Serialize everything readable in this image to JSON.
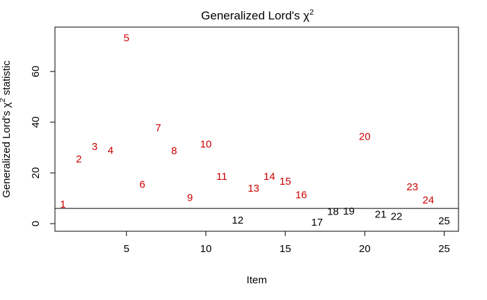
{
  "chart_data": {
    "type": "scatter",
    "title": {
      "main": "Generalized Lord's ",
      "symbol": "χ",
      "sup": "2"
    },
    "xlabel": "Item",
    "ylabel": {
      "main": "Generalized Lord's ",
      "symbol": "χ",
      "sup": "2",
      "tail": " statistic"
    },
    "xlim": [
      0.5,
      25.9
    ],
    "ylim": [
      -3,
      77.5
    ],
    "x_ticks": [
      5,
      10,
      15,
      20,
      25
    ],
    "y_ticks": [
      0,
      20,
      40,
      60
    ],
    "threshold": 6,
    "colors": {
      "flagged": "#cc0000",
      "not_flagged": "#000000",
      "axis": "#000000"
    },
    "grid": false,
    "points": [
      {
        "label": "1",
        "x": 1,
        "y": 7.5,
        "flagged": true
      },
      {
        "label": "2",
        "x": 2,
        "y": 25.3,
        "flagged": true
      },
      {
        "label": "3",
        "x": 3,
        "y": 30.2,
        "flagged": true
      },
      {
        "label": "4",
        "x": 4,
        "y": 28.8,
        "flagged": true
      },
      {
        "label": "5",
        "x": 5,
        "y": 73.1,
        "flagged": true
      },
      {
        "label": "6",
        "x": 6,
        "y": 15.4,
        "flagged": true
      },
      {
        "label": "7",
        "x": 7,
        "y": 37.7,
        "flagged": true
      },
      {
        "label": "8",
        "x": 8,
        "y": 28.6,
        "flagged": true
      },
      {
        "label": "9",
        "x": 9,
        "y": 10.2,
        "flagged": true
      },
      {
        "label": "10",
        "x": 10,
        "y": 31.2,
        "flagged": true
      },
      {
        "label": "11",
        "x": 11,
        "y": 18.5,
        "flagged": true
      },
      {
        "label": "12",
        "x": 12,
        "y": 1.3,
        "flagged": false
      },
      {
        "label": "13",
        "x": 13,
        "y": 13.8,
        "flagged": true
      },
      {
        "label": "14",
        "x": 14,
        "y": 18.5,
        "flagged": true
      },
      {
        "label": "15",
        "x": 15,
        "y": 16.6,
        "flagged": true
      },
      {
        "label": "16",
        "x": 16,
        "y": 11.3,
        "flagged": true
      },
      {
        "label": "17",
        "x": 17,
        "y": 0.4,
        "flagged": false
      },
      {
        "label": "18",
        "x": 18,
        "y": 4.6,
        "flagged": false
      },
      {
        "label": "19",
        "x": 19,
        "y": 4.8,
        "flagged": false
      },
      {
        "label": "20",
        "x": 20,
        "y": 34.3,
        "flagged": true
      },
      {
        "label": "21",
        "x": 21,
        "y": 3.6,
        "flagged": false
      },
      {
        "label": "22",
        "x": 22,
        "y": 2.8,
        "flagged": false
      },
      {
        "label": "23",
        "x": 23,
        "y": 14.4,
        "flagged": true
      },
      {
        "label": "24",
        "x": 24,
        "y": 9.2,
        "flagged": true
      },
      {
        "label": "25",
        "x": 25,
        "y": 1.0,
        "flagged": false
      }
    ]
  }
}
